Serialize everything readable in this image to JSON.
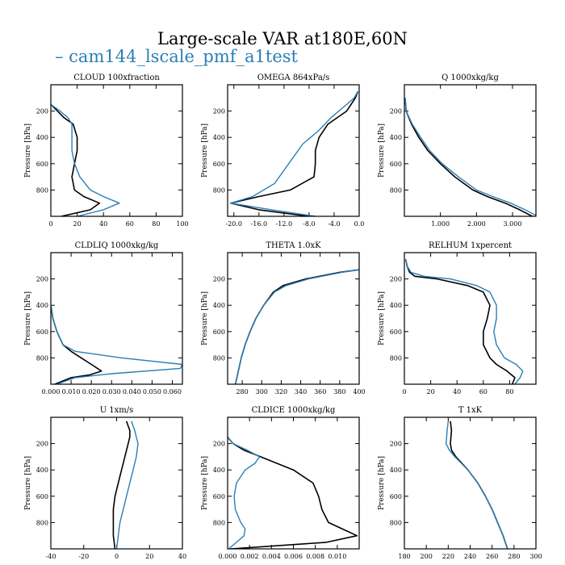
{
  "figure": {
    "title": "Large-scale VAR at180E,60N",
    "legend_label": "– cam144_lscale_pmf_a1test",
    "colors": {
      "reference": "#000000",
      "test": "#2a7fb5"
    }
  },
  "chart_data": [
    {
      "type": "line",
      "title": "CLOUD  100xfraction",
      "ylabel": "Pressure [hPa]",
      "xlim": [
        0,
        100
      ],
      "ylim": [
        1000,
        0
      ],
      "xticks": [
        "0",
        "20",
        "40",
        "60",
        "80",
        "100"
      ],
      "yticks": [
        "200",
        "400",
        "600",
        "800"
      ],
      "grid": false,
      "series": [
        {
          "p": [
            150,
            200,
            250,
            300,
            400,
            500,
            600,
            700,
            800,
            850,
            900,
            950,
            1000
          ],
          "x": [
            0,
            5,
            10,
            17,
            20,
            20,
            18,
            16,
            18,
            25,
            37,
            30,
            8
          ]
        },
        {
          "name": "cam144_lscale_pmf_a1test",
          "p": [
            150,
            200,
            250,
            300,
            400,
            500,
            600,
            700,
            800,
            850,
            900,
            950,
            1000
          ],
          "x": [
            0,
            7,
            13,
            16,
            16,
            16,
            18,
            22,
            30,
            40,
            52,
            40,
            20
          ]
        }
      ]
    },
    {
      "type": "line",
      "title": "OMEGA  864xPa/s",
      "ylabel": "Pressure [hPa]",
      "xlim": [
        -21,
        0
      ],
      "ylim": [
        1000,
        0
      ],
      "xticks": [
        "-20.0",
        "-16.0",
        "-12.0",
        "-8.0",
        "-4.0",
        "0.0"
      ],
      "yticks": [
        "200",
        "400",
        "600",
        "800"
      ],
      "grid": false,
      "series": [
        {
          "p": [
            50,
            100,
            200,
            300,
            400,
            500,
            600,
            700,
            800,
            850,
            900,
            950,
            1000
          ],
          "x": [
            -0.2,
            -0.6,
            -2,
            -5,
            -6.4,
            -7,
            -7,
            -7.2,
            -11,
            -16,
            -20.5,
            -16,
            -8
          ]
        },
        {
          "name": "cam144_lscale_pmf_a1test",
          "p": [
            50,
            100,
            150,
            250,
            350,
            450,
            550,
            650,
            750,
            850,
            900,
            950,
            1000
          ],
          "x": [
            -0.2,
            -0.8,
            -2,
            -4.5,
            -6.5,
            -9,
            -10.5,
            -12,
            -13.5,
            -17,
            -20.5,
            -14,
            -7
          ]
        }
      ]
    },
    {
      "type": "line",
      "title": "Q  1000xkg/kg",
      "ylabel": "Pressure [hPa]",
      "xlim": [
        0,
        3.65
      ],
      "ylim": [
        1000,
        0
      ],
      "xticks": [
        "1.000",
        "2.000",
        "3.000"
      ],
      "xtick_values": [
        1,
        2,
        3
      ],
      "yticks": [
        "200",
        "400",
        "600",
        "800"
      ],
      "grid": false,
      "series": [
        {
          "p": [
            100,
            200,
            300,
            400,
            500,
            600,
            700,
            800,
            850,
            900,
            950,
            1000
          ],
          "x": [
            0.02,
            0.05,
            0.2,
            0.4,
            0.65,
            1.0,
            1.4,
            1.9,
            2.3,
            2.8,
            3.2,
            3.55
          ]
        },
        {
          "name": "cam144_lscale_pmf_a1test",
          "p": [
            100,
            200,
            300,
            400,
            500,
            600,
            700,
            800,
            850,
            900,
            950,
            1000
          ],
          "x": [
            0.02,
            0.05,
            0.22,
            0.45,
            0.7,
            1.05,
            1.5,
            2.0,
            2.45,
            2.95,
            3.35,
            3.7
          ]
        }
      ]
    },
    {
      "type": "line",
      "title": "CLDLIQ  1000xkg/kg",
      "ylabel": "Pressure [hPa]",
      "xlim": [
        0,
        0.065
      ],
      "ylim": [
        1000,
        0
      ],
      "xticks": [
        "0.000",
        "0.010",
        "0.020",
        "0.030",
        "0.040",
        "0.050",
        "0.060"
      ],
      "xtick_values": [
        0,
        0.01,
        0.02,
        0.03,
        0.04,
        0.05,
        0.06
      ],
      "yticks": [
        "200",
        "400",
        "600",
        "800"
      ],
      "grid": false,
      "series": [
        {
          "p": [
            400,
            500,
            600,
            700,
            750,
            800,
            850,
            900,
            930,
            950,
            1000
          ],
          "x": [
            0,
            0.001,
            0.003,
            0.006,
            0.01,
            0.015,
            0.02,
            0.025,
            0.019,
            0.01,
            0.002
          ]
        },
        {
          "name": "cam144_lscale_pmf_a1test",
          "p": [
            400,
            500,
            600,
            700,
            750,
            800,
            850,
            880,
            920,
            950,
            1000
          ],
          "x": [
            0,
            0.001,
            0.003,
            0.006,
            0.012,
            0.035,
            0.065,
            0.064,
            0.03,
            0.012,
            0.003
          ]
        }
      ]
    },
    {
      "type": "line",
      "title": "THETA  1.0xK",
      "ylabel": "Pressure [hPa]",
      "xlim": [
        265,
        400
      ],
      "ylim": [
        1000,
        0
      ],
      "xticks": [
        "280",
        "300",
        "320",
        "340",
        "360",
        "380",
        "400"
      ],
      "xtick_values": [
        280,
        300,
        320,
        340,
        360,
        380,
        400
      ],
      "yticks": [
        "200",
        "400",
        "600",
        "800"
      ],
      "grid": false,
      "series": [
        {
          "p": [
            130,
            150,
            200,
            250,
            300,
            400,
            500,
            600,
            700,
            800,
            900,
            1000
          ],
          "x": [
            400,
            380,
            345,
            322,
            312,
            302,
            294,
            288,
            283,
            279,
            276,
            273
          ]
        },
        {
          "name": "cam144_lscale_pmf_a1test",
          "p": [
            130,
            150,
            200,
            250,
            300,
            400,
            500,
            600,
            700,
            800,
            900,
            1000
          ],
          "x": [
            400,
            382,
            348,
            325,
            313,
            302,
            294,
            288,
            283,
            279,
            276,
            273
          ]
        }
      ]
    },
    {
      "type": "line",
      "title": "RELHUM  1xpercent",
      "ylabel": "Pressure [hPa]",
      "xlim": [
        0,
        100
      ],
      "ylim": [
        1000,
        0
      ],
      "xticks": [
        "0",
        "20",
        "40",
        "60",
        "80"
      ],
      "yticks": [
        "200",
        "400",
        "600",
        "800"
      ],
      "grid": false,
      "series": [
        {
          "p": [
            50,
            100,
            150,
            180,
            200,
            250,
            300,
            400,
            500,
            600,
            700,
            800,
            850,
            900,
            950,
            1000
          ],
          "x": [
            1,
            2,
            4,
            8,
            25,
            48,
            60,
            65,
            63,
            60,
            60,
            65,
            70,
            78,
            84,
            82
          ]
        },
        {
          "name": "cam144_lscale_pmf_a1test",
          "p": [
            50,
            100,
            150,
            180,
            200,
            250,
            300,
            400,
            500,
            600,
            700,
            800,
            850,
            900,
            950,
            1000
          ],
          "x": [
            1,
            2,
            5,
            15,
            35,
            55,
            65,
            70,
            70,
            68,
            70,
            76,
            85,
            90,
            88,
            84
          ]
        }
      ]
    },
    {
      "type": "line",
      "title": "U  1xm/s",
      "ylabel": "Pressure [hPa]",
      "xlim": [
        -40,
        40
      ],
      "ylim": [
        1000,
        0
      ],
      "xticks": [
        "-40",
        "-20",
        "0",
        "20",
        "40"
      ],
      "yticks": [
        "200",
        "400",
        "600",
        "800"
      ],
      "grid": false,
      "series": [
        {
          "p": [
            30,
            100,
            150,
            200,
            300,
            400,
            500,
            600,
            700,
            800,
            900,
            1000
          ],
          "x": [
            6,
            8,
            8,
            7,
            5,
            3,
            1,
            -1,
            -2,
            -2,
            -2,
            -1
          ]
        },
        {
          "name": "cam144_lscale_pmf_a1test",
          "p": [
            30,
            100,
            150,
            200,
            300,
            400,
            500,
            600,
            700,
            800,
            900,
            1000
          ],
          "x": [
            9,
            11,
            12,
            13,
            12,
            10,
            8,
            6,
            4,
            2,
            1,
            0
          ]
        }
      ]
    },
    {
      "type": "line",
      "title": "CLDICE  1000xkg/kg",
      "ylabel": "Pressure [hPa]",
      "xlim": [
        0,
        0.012
      ],
      "ylim": [
        1000,
        0
      ],
      "xticks": [
        "0.000",
        "0.002",
        "0.004",
        "0.006",
        "0.008",
        "0.010"
      ],
      "xtick_values": [
        0,
        0.002,
        0.004,
        0.006,
        0.008,
        0.01
      ],
      "yticks": [
        "200",
        "400",
        "600",
        "800"
      ],
      "grid": false,
      "series": [
        {
          "p": [
            150,
            200,
            250,
            300,
            400,
            500,
            600,
            700,
            800,
            850,
            900,
            950,
            1000
          ],
          "x": [
            0,
            0.0005,
            0.0015,
            0.003,
            0.006,
            0.0078,
            0.0083,
            0.0086,
            0.0092,
            0.0105,
            0.0118,
            0.009,
            0.0003
          ]
        },
        {
          "name": "cam144_lscale_pmf_a1test",
          "p": [
            150,
            200,
            250,
            300,
            350,
            400,
            500,
            600,
            700,
            800,
            850,
            900,
            950,
            1000
          ],
          "x": [
            0,
            0.0005,
            0.0018,
            0.0029,
            0.0025,
            0.0016,
            0.0008,
            0.0006,
            0.0007,
            0.0012,
            0.0016,
            0.0015,
            0.0008,
            0.0001
          ]
        }
      ]
    },
    {
      "type": "line",
      "title": "T  1xK",
      "ylabel": "Pressure [hPa]",
      "xlim": [
        180,
        300
      ],
      "ylim": [
        1000,
        0
      ],
      "xticks": [
        "180",
        "200",
        "220",
        "240",
        "260",
        "280",
        "300"
      ],
      "xtick_values": [
        180,
        200,
        220,
        240,
        260,
        280,
        300
      ],
      "yticks": [
        "200",
        "400",
        "600",
        "800"
      ],
      "grid": false,
      "series": [
        {
          "p": [
            30,
            100,
            200,
            250,
            300,
            400,
            500,
            600,
            700,
            800,
            900,
            1000
          ],
          "x": [
            222,
            223,
            222,
            223,
            227,
            238,
            247,
            254,
            260,
            265,
            270,
            274
          ]
        },
        {
          "name": "cam144_lscale_pmf_a1test",
          "p": [
            30,
            100,
            200,
            250,
            300,
            400,
            500,
            600,
            700,
            800,
            900,
            1000
          ],
          "x": [
            220,
            219,
            218,
            221,
            226,
            238,
            247,
            254,
            260,
            265,
            270,
            274
          ]
        }
      ]
    }
  ]
}
